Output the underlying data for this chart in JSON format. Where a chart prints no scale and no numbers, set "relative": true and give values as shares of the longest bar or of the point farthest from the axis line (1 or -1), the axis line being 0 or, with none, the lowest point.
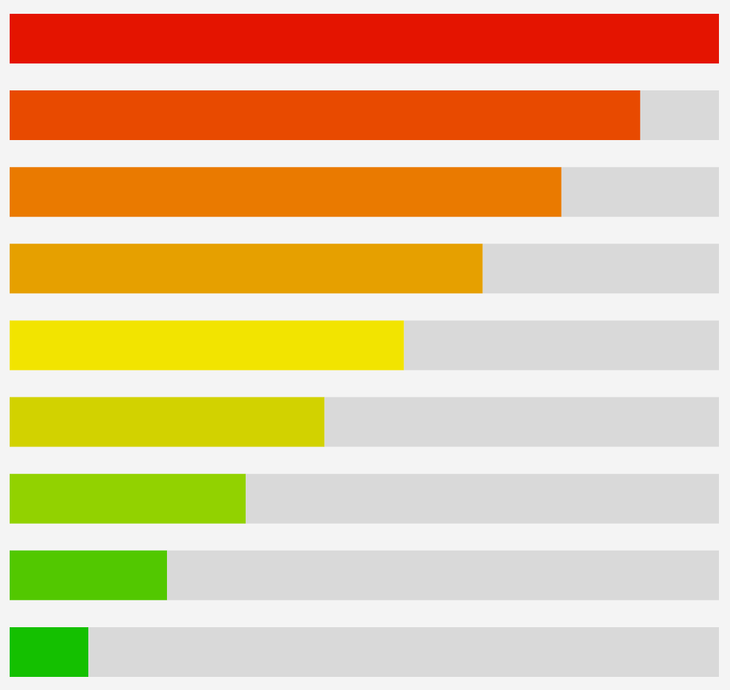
{
  "chart_data": {
    "type": "bar",
    "orientation": "horizontal",
    "relative": true,
    "stacked": true,
    "categories": [
      null,
      null,
      null,
      null,
      null,
      null,
      null,
      null,
      null
    ],
    "series": [
      {
        "colors": [
          "#e41400",
          "#e84a00",
          "#ea7a00",
          "#e6a000",
          "#f2e400",
          "#d2d200",
          "#92d200",
          "#52c800",
          "#14c000"
        ],
        "values": [
          1,
          0.889,
          0.778,
          0.667,
          0.556,
          0.444,
          0.333,
          0.222,
          0.111
        ]
      },
      {
        "color": "#d9d9d9",
        "values": [
          0,
          0.111,
          0.222,
          0.333,
          0.444,
          0.556,
          0.667,
          0.778,
          0.889
        ]
      }
    ]
  }
}
